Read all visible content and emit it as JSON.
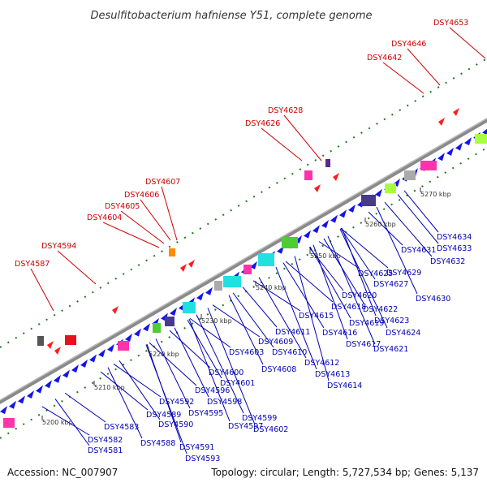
{
  "title": "Desulfitobacterium hafniense Y51, complete genome",
  "footer": {
    "accession": "Accession: NC_007907",
    "summary": "Topology: circular; Length: 5,727,534 bp; Genes: 5,137"
  },
  "colors": {
    "backbone": "#8a8a8a",
    "label_red": "#cc0000",
    "label_blue": "#0000b4",
    "gene_blue": "#1515e6",
    "tick_green": "#1c7a1c"
  },
  "scale_ticks": [
    {
      "label": "5200 kbp",
      "kbp": 5200
    },
    {
      "label": "5210 kbp",
      "kbp": 5210
    },
    {
      "label": "5220 kbp",
      "kbp": 5220
    },
    {
      "label": "5230 kbp",
      "kbp": 5230
    },
    {
      "label": "5240 kbp",
      "kbp": 5240
    },
    {
      "label": "5250 kbp",
      "kbp": 5250
    },
    {
      "label": "5260 kbp",
      "kbp": 5260
    },
    {
      "label": "5270 kbp",
      "kbp": 5270
    }
  ],
  "genes_top": [
    "DSY4653",
    "DSY4646",
    "DSY4642",
    "DSY4628",
    "DSY4626",
    "DSY4607",
    "DSY4606",
    "DSY4605",
    "DSY4604",
    "DSY4594",
    "DSY4587"
  ],
  "genes_bottom": [
    "DSY4634",
    "DSY4633",
    "DSY4632",
    "DSY4631",
    "DSY4630",
    "DSY4629",
    "DSY4627",
    "DSY4625",
    "DSY4624",
    "DSY4623",
    "DSY4622",
    "DSY4621",
    "DSY4620",
    "DSY4619",
    "DSY4618",
    "DSY4617",
    "DSY4616",
    "DSY4615",
    "DSY4614",
    "DSY4613",
    "DSY4612",
    "DSY4611",
    "DSY4610",
    "DSY4609",
    "DSY4608",
    "DSY4603",
    "DSY4602",
    "DSY4601",
    "DSY4600",
    "DSY4599",
    "DSY4598",
    "DSY4597",
    "DSY4596",
    "DSY4595",
    "DSY4593",
    "DSY4592",
    "DSY4591",
    "DSY4590",
    "DSY4589",
    "DSY4588",
    "DSY4583",
    "DSY4582",
    "DSY4581"
  ]
}
